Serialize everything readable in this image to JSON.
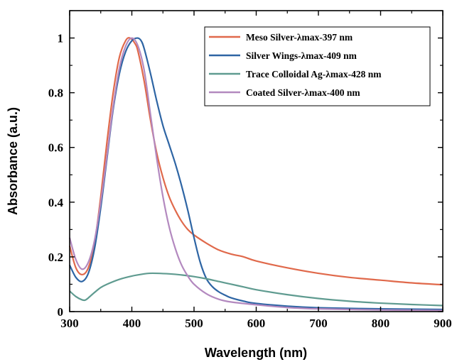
{
  "chart_data": {
    "type": "line",
    "title": "",
    "xlabel": "Wavelength (nm)",
    "ylabel": "Absorbance (a.u.)",
    "xlim": [
      300,
      900
    ],
    "ylim": [
      0,
      1.1
    ],
    "x_ticks": [
      300,
      400,
      500,
      600,
      700,
      800,
      900
    ],
    "y_ticks": [
      0,
      0.2,
      0.4,
      0.6,
      0.8,
      1
    ],
    "y_tick_labels": [
      "0",
      "0.2",
      "0.4",
      "0.6",
      "0.8",
      "1"
    ],
    "grid": false,
    "legend_position": "top-right",
    "series": [
      {
        "name": "Meso Silver-λmax-397 nm",
        "color": "#e0694b",
        "x": [
          300,
          310,
          320,
          330,
          340,
          350,
          360,
          370,
          380,
          390,
          397,
          405,
          410,
          420,
          430,
          440,
          450,
          460,
          470,
          480,
          490,
          500,
          520,
          540,
          560,
          580,
          600,
          650,
          700,
          750,
          800,
          850,
          900
        ],
        "y": [
          0.24,
          0.16,
          0.135,
          0.16,
          0.25,
          0.42,
          0.62,
          0.8,
          0.93,
          0.99,
          1.0,
          0.98,
          0.95,
          0.84,
          0.7,
          0.58,
          0.49,
          0.42,
          0.37,
          0.33,
          0.3,
          0.28,
          0.25,
          0.225,
          0.21,
          0.2,
          0.185,
          0.16,
          0.14,
          0.125,
          0.115,
          0.105,
          0.098
        ]
      },
      {
        "name": "Silver Wings-λmax-409 nm",
        "color": "#2e65a4",
        "x": [
          300,
          310,
          320,
          330,
          340,
          350,
          360,
          370,
          380,
          390,
          400,
          409,
          415,
          420,
          430,
          440,
          450,
          460,
          470,
          480,
          490,
          500,
          510,
          520,
          530,
          540,
          550,
          560,
          580,
          600,
          650,
          700,
          800,
          900
        ],
        "y": [
          0.17,
          0.125,
          0.11,
          0.14,
          0.23,
          0.38,
          0.56,
          0.74,
          0.87,
          0.95,
          0.99,
          1.0,
          0.99,
          0.96,
          0.87,
          0.77,
          0.68,
          0.61,
          0.54,
          0.46,
          0.37,
          0.27,
          0.18,
          0.12,
          0.09,
          0.072,
          0.06,
          0.05,
          0.038,
          0.03,
          0.02,
          0.014,
          0.01,
          0.008
        ]
      },
      {
        "name": "Trace Colloidal Ag-λmax-428 nm",
        "color": "#5f9b90",
        "x": [
          300,
          310,
          320,
          325,
          330,
          340,
          350,
          360,
          380,
          400,
          420,
          428,
          440,
          460,
          480,
          500,
          520,
          540,
          560,
          580,
          600,
          650,
          700,
          750,
          800,
          850,
          900
        ],
        "y": [
          0.075,
          0.055,
          0.043,
          0.042,
          0.05,
          0.07,
          0.088,
          0.1,
          0.118,
          0.13,
          0.138,
          0.14,
          0.14,
          0.138,
          0.134,
          0.128,
          0.12,
          0.11,
          0.1,
          0.09,
          0.08,
          0.062,
          0.048,
          0.038,
          0.031,
          0.026,
          0.022
        ]
      },
      {
        "name": "Coated Silver-λmax-400 nm",
        "color": "#b389bf",
        "x": [
          300,
          310,
          320,
          330,
          340,
          350,
          360,
          370,
          380,
          390,
          400,
          410,
          420,
          430,
          440,
          450,
          460,
          470,
          480,
          490,
          500,
          520,
          540,
          560,
          600,
          650,
          700,
          800,
          900
        ],
        "y": [
          0.27,
          0.19,
          0.155,
          0.18,
          0.26,
          0.4,
          0.57,
          0.75,
          0.89,
          0.97,
          1.0,
          0.97,
          0.88,
          0.72,
          0.56,
          0.42,
          0.31,
          0.23,
          0.17,
          0.13,
          0.1,
          0.065,
          0.045,
          0.035,
          0.025,
          0.015,
          0.01,
          0.006,
          0.004
        ]
      }
    ]
  }
}
